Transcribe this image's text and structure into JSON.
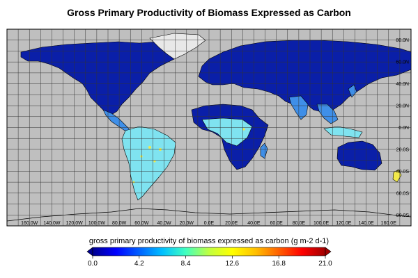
{
  "title": "Gross Primary Productivity of Biomass Expressed as Carbon",
  "map": {
    "ocean_color": "#bfbfbf",
    "land_low_color": "#0a1fa8",
    "land_mid_color": "#3f8fe8",
    "land_high_color": "#7fe3f0",
    "hotspot_color": "#f2e94a",
    "coast_color": "#000000",
    "grid_color": "#333333"
  },
  "longitude_labels": [
    "160.0W",
    "140.0W",
    "120.0W",
    "100.0W",
    "80.0W",
    "60.0W",
    "40.0W",
    "20.0W",
    "0.0E",
    "20.0E",
    "40.0E",
    "60.0E",
    "80.0E",
    "100.0E",
    "120.0E",
    "140.0E",
    "160.0E"
  ],
  "latitude_labels": [
    "80.0N",
    "60.0N",
    "40.0N",
    "20.0N",
    "0.0N",
    "20.0S",
    "40.0S",
    "60.0S",
    "80.0S"
  ],
  "colorbar": {
    "title": "gross primary productivity of biomass expressed as carbon (g m-2 d-1)",
    "ticks": [
      "0.0",
      "4.2",
      "8.4",
      "12.6",
      "16.8",
      "21.0"
    ],
    "min": 0.0,
    "max": 21.0,
    "colors": [
      "#000090",
      "#0000ff",
      "#0060ff",
      "#00c0ff",
      "#40ffc0",
      "#c0ff40",
      "#ffff00",
      "#ffc000",
      "#ff6000",
      "#ff0000",
      "#a00000"
    ]
  }
}
